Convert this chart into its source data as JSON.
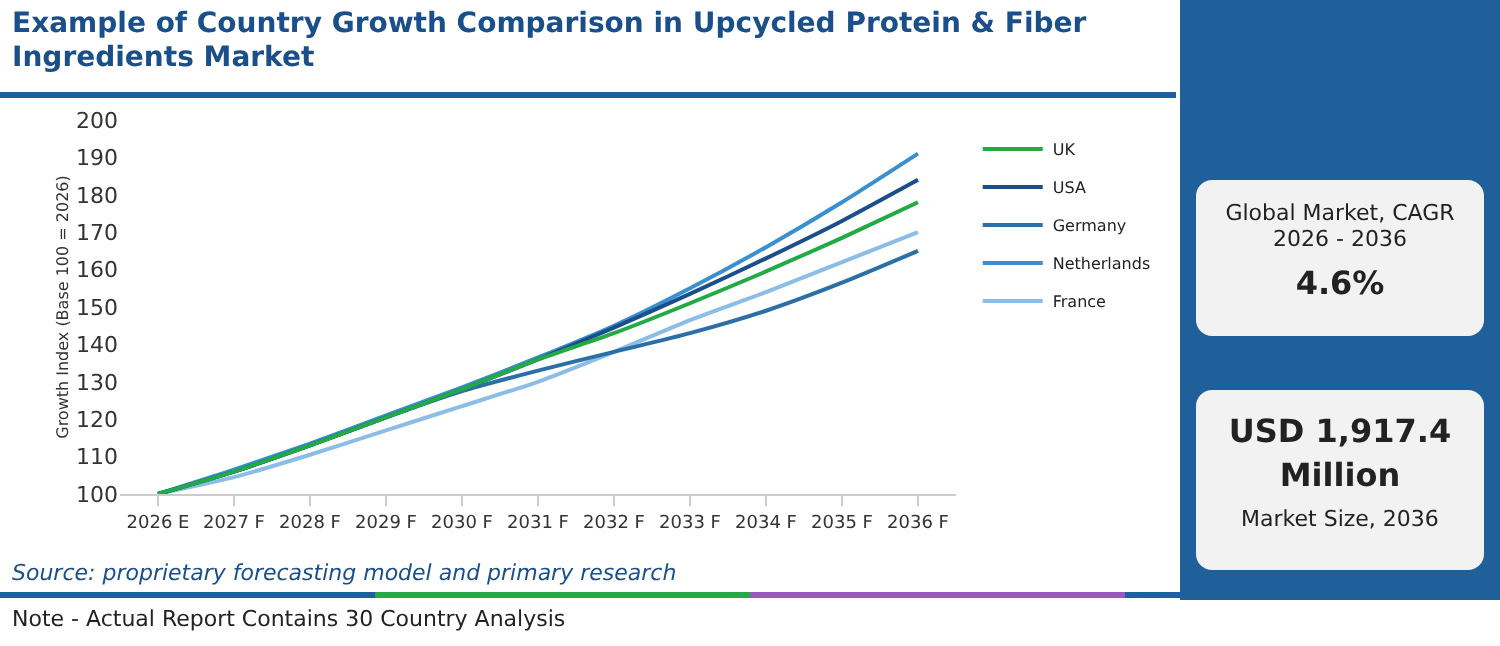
{
  "chart_data": {
    "type": "line",
    "title": "Example of Country Growth Comparison in Upcycled Protein & Fiber Ingredients Market",
    "ylabel": "Growth Index (Base 100 = 2026)",
    "categories": [
      "2026 E",
      "2027 F",
      "2028 F",
      "2029 F",
      "2030 F",
      "2031 F",
      "2032 F",
      "2033 F",
      "2034 F",
      "2035 F",
      "2036 F"
    ],
    "series": [
      {
        "name": "UK",
        "color": "#22aa44",
        "values": [
          100,
          106,
          113,
          120.5,
          128,
          136,
          143,
          151,
          159.5,
          168.5,
          178
        ]
      },
      {
        "name": "USA",
        "color": "#1a4f8a",
        "values": [
          100,
          106,
          113,
          120.5,
          128,
          136,
          144.5,
          153.5,
          163,
          173,
          184
        ]
      },
      {
        "name": "Germany",
        "color": "#2a6fa8",
        "values": [
          100,
          106,
          113,
          120.5,
          127.5,
          133,
          138,
          143,
          149,
          156.5,
          165
        ]
      },
      {
        "name": "Netherlands",
        "color": "#3a8fd0",
        "values": [
          100,
          106.5,
          113.5,
          121,
          128.5,
          136.5,
          145,
          155,
          166,
          178,
          191
        ]
      },
      {
        "name": "France",
        "color": "#8cbde6",
        "values": [
          100,
          104.5,
          110.5,
          117,
          123.5,
          130,
          138,
          146.5,
          154,
          162,
          170
        ]
      }
    ],
    "ylim": [
      100,
      200
    ],
    "yticks": [
      100,
      110,
      120,
      130,
      140,
      150,
      160,
      170,
      180,
      190,
      200
    ],
    "grid": false,
    "legend": "right",
    "marker": "none",
    "line_style": "solid",
    "annotations": [
      "Source: proprietary forecasting model and primary research",
      "Note - Actual Report Contains 30 Country Analysis",
      "Global Market, CAGR 2026 - 2036",
      "4.6%",
      "USD 1,917.4 Million",
      "Market Size, 2036"
    ]
  }
}
